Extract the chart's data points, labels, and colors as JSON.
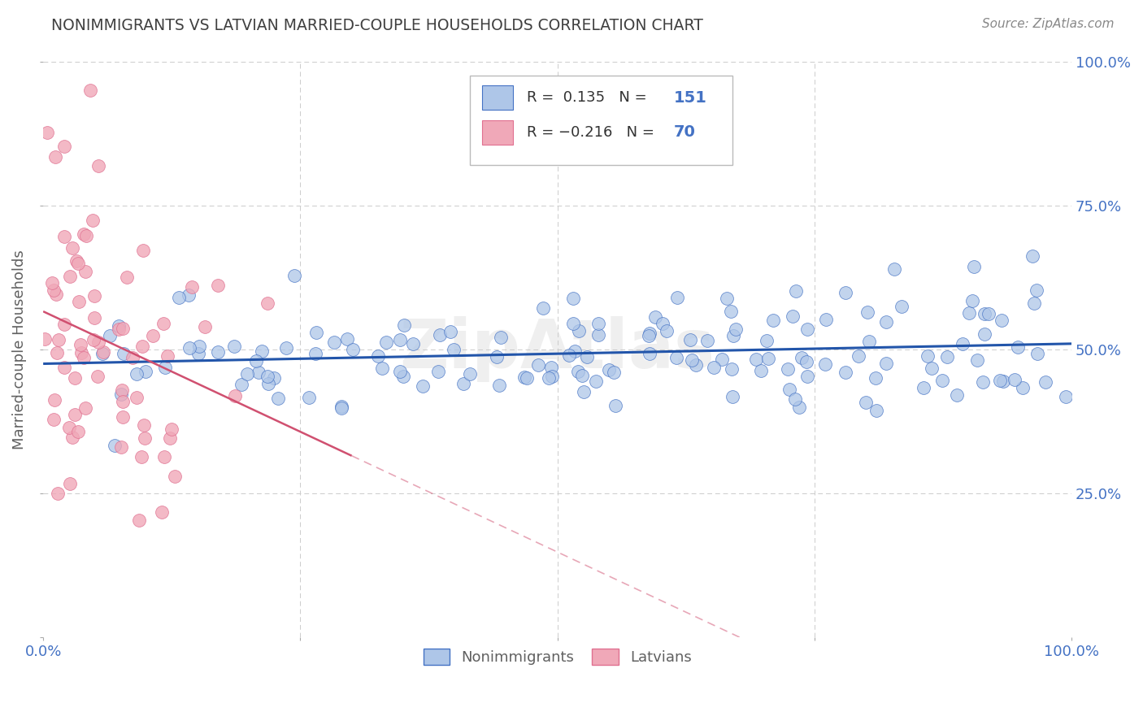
{
  "title": "NONIMMIGRANTS VS LATVIAN MARRIED-COUPLE HOUSEHOLDS CORRELATION CHART",
  "source": "Source: ZipAtlas.com",
  "ylabel": "Married-couple Households",
  "xticklabels_bottom": [
    "0.0%",
    "100.0%"
  ],
  "xticklabels_positions": [
    0.0,
    1.0
  ],
  "right_ytick_labels": [
    "25.0%",
    "50.0%",
    "75.0%",
    "100.0%"
  ],
  "right_ytick_positions": [
    0.25,
    0.5,
    0.75,
    1.0
  ],
  "legend_bottom_labels": [
    "Nonimmigrants",
    "Latvians"
  ],
  "r_nonimmigrant": 0.135,
  "n_nonimmigrant": 151,
  "r_latvian": -0.216,
  "n_latvian": 70,
  "nonimmigrant_color": "#aec6e8",
  "latvian_color": "#f0a8b8",
  "nonimmigrant_edge_color": "#4472C4",
  "latvian_edge_color": "#e07090",
  "nonimmigrant_line_color": "#2255aa",
  "latvian_line_color": "#d05070",
  "background_color": "#ffffff",
  "grid_color": "#cccccc",
  "title_color": "#404040",
  "source_color": "#888888",
  "axis_label_color": "#606060",
  "right_tick_color": "#4472C4",
  "watermark": "ZipAtlas",
  "seed": 12345,
  "xlim": [
    0,
    1
  ],
  "ylim": [
    0,
    1
  ]
}
